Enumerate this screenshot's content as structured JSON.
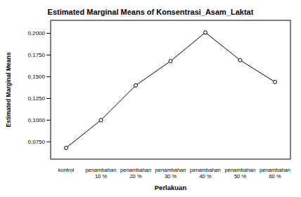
{
  "chart_data": {
    "type": "line",
    "title": "Estimated Marginal Means of Konsentrasi_Asam_Laktat",
    "x_label": "Perlakuan",
    "y_label": "Estimated Marginal Means",
    "categories": [
      "kontrol",
      "penambahan 10 %",
      "penambahan 20 %",
      "penambahan 30 %",
      "penambahan 40 %",
      "penambahan 50 %",
      "penambahan 60 %"
    ],
    "values": [
      0.068,
      0.1,
      0.14,
      0.168,
      0.201,
      0.169,
      0.144
    ],
    "color": "#000000",
    "marker": "circle",
    "ylim": [
      0.055,
      0.215
    ],
    "yticks": [
      {
        "value": 0.075,
        "label": "0,0750"
      },
      {
        "value": 0.1,
        "label": "0,1000"
      },
      {
        "value": 0.125,
        "label": "0,1250"
      },
      {
        "value": 0.15,
        "label": "0,1500"
      },
      {
        "value": 0.175,
        "label": "0,1750"
      },
      {
        "value": 0.2,
        "label": "0,2000"
      }
    ],
    "grid": false
  }
}
